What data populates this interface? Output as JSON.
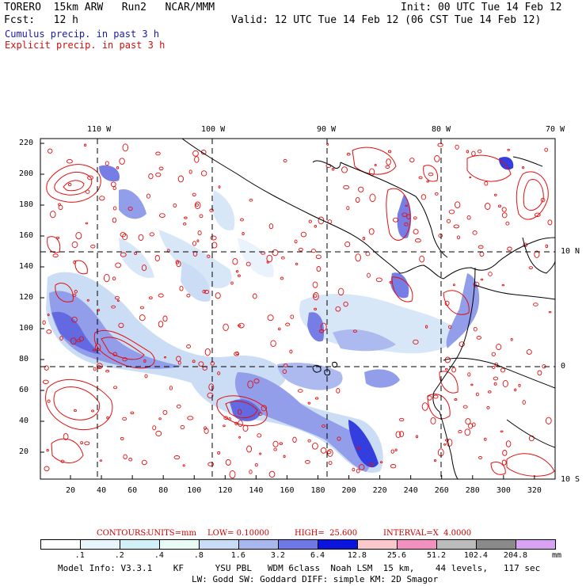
{
  "header": {
    "model": "TORERO  15km ARW   Run2   NCAR/MMM",
    "init": "Init: 00 UTC Tue 14 Feb 12",
    "fcst": "Fcst:   12 h",
    "valid": "Valid: 12 UTC Tue 14 Feb 12 (06 CST Tue 14 Feb 12)",
    "cumulus": "Cumulus precip. in past 3 h",
    "explicit": "Explicit precip. in past 3 h"
  },
  "axes": {
    "lon_labels": [
      "110 W",
      "100 W",
      "90 W",
      "80 W",
      "70 W"
    ],
    "lat_labels": [
      "10 N",
      "0",
      "10 S"
    ],
    "y_ticks": [
      "220",
      "200",
      "180",
      "160",
      "140",
      "120",
      "100",
      "80",
      "60",
      "40",
      "20"
    ],
    "x_ticks": [
      "20",
      "40",
      "60",
      "80",
      "100",
      "120",
      "140",
      "160",
      "180",
      "200",
      "220",
      "240",
      "260",
      "280",
      "300",
      "320"
    ]
  },
  "contours_line": {
    "label": "CONTOURS:",
    "units": "UNITS=mm",
    "low": "LOW= 0.10000",
    "high": "HIGH=  25.600",
    "interval": "INTERVAL=X  4.0000"
  },
  "colorbar": {
    "labels": [
      ".1",
      ".2",
      ".4",
      ".8",
      "1.6",
      "3.2",
      "6.4",
      "12.8",
      "25.6",
      "51.2",
      "102.4",
      "204.8"
    ],
    "unit": "mm",
    "colors": [
      "#ffffff",
      "#e6f6fb",
      "#d2f0f7",
      "#e9fbf5",
      "#c9dcf5",
      "#a9b7ef",
      "#6f78e5",
      "#0b14dc",
      "#fbc8cc",
      "#f290c0",
      "#bcbcbc",
      "#8a8a8a",
      "#d9a3f5"
    ]
  },
  "footer": {
    "line1": "Model Info: V3.3.1    KF      YSU PBL   WDM 6class  Noah LSM  15 km,    44 levels,   117 sec",
    "line2": "LW: Godd SW: Goddard DIFF: simple KM: 2D Smagor"
  }
}
